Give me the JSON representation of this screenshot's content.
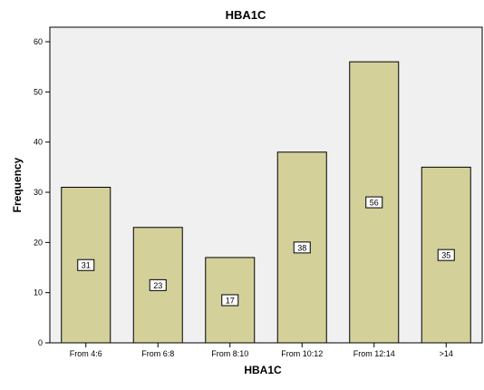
{
  "chart_data": {
    "type": "bar",
    "title": "HBA1C",
    "xlabel": "HBA1C",
    "ylabel": "Frequency",
    "categories": [
      "From 4:6",
      "From 6:8",
      "From 8:10",
      "From 10:12",
      "From 12:14",
      ">14"
    ],
    "values": [
      31,
      23,
      17,
      38,
      56,
      35
    ],
    "data_labels": [
      "31",
      "23",
      "17",
      "38",
      "56",
      "35"
    ],
    "ylim": [
      0,
      60
    ],
    "yticks": [
      0,
      10,
      20,
      30,
      40,
      50,
      60
    ],
    "ytick_labels": [
      "0",
      "10",
      "20",
      "30",
      "40",
      "50",
      "60"
    ],
    "grid": false,
    "legend": "none",
    "colors": {
      "bar_fill": "#d3d09a",
      "bar_stroke": "#000000",
      "plot_background": "#f0f0f0",
      "plot_border": "#000000"
    }
  }
}
